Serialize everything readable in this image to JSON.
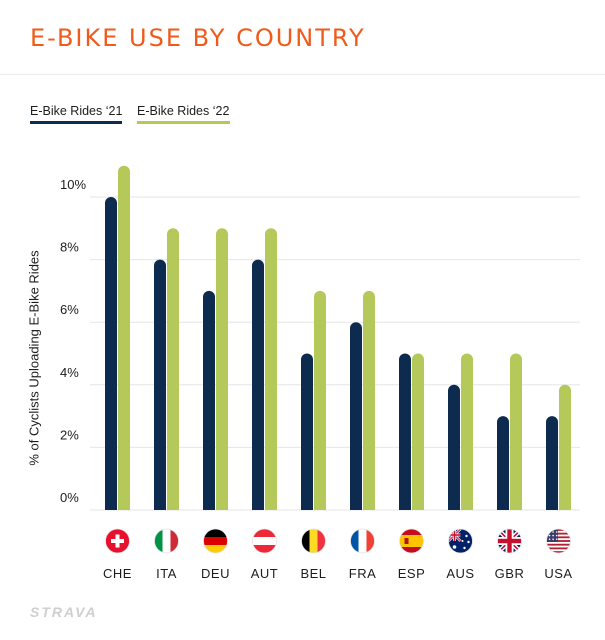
{
  "header": {
    "title": "E-BIKE USE BY COUNTRY"
  },
  "colors": {
    "title": "#f05a1a",
    "series_2021": "#0d2b4e",
    "series_2022": "#b5c95a",
    "grid": "#e6e6e6"
  },
  "branding": {
    "logo_text": "STRAVA"
  },
  "chart_data": {
    "type": "bar",
    "title": "E-BIKE USE BY COUNTRY",
    "xlabel": "",
    "ylabel": "% of Cyclists Uploading E-Bike Rides",
    "ylim": [
      0,
      10
    ],
    "yticks": [
      "0%",
      "2%",
      "4%",
      "6%",
      "8%",
      "10%"
    ],
    "grid": true,
    "legend_position": "top-left",
    "categories": [
      "CHE",
      "ITA",
      "DEU",
      "AUT",
      "BEL",
      "FRA",
      "ESP",
      "AUS",
      "GBR",
      "USA"
    ],
    "category_icons": [
      "switzerland-flag-icon",
      "italy-flag-icon",
      "germany-flag-icon",
      "austria-flag-icon",
      "belgium-flag-icon",
      "france-flag-icon",
      "spain-flag-icon",
      "australia-flag-icon",
      "uk-flag-icon",
      "usa-flag-icon"
    ],
    "series": [
      {
        "name": "E-Bike Rides ‘21",
        "color": "#0d2b4e",
        "values": [
          10,
          8,
          7,
          8,
          5,
          6,
          5,
          4,
          3,
          3
        ]
      },
      {
        "name": "E-Bike Rides ‘22",
        "color": "#b5c95a",
        "values": [
          11,
          9,
          9,
          9,
          7,
          7,
          5,
          5,
          5,
          4
        ]
      }
    ]
  }
}
